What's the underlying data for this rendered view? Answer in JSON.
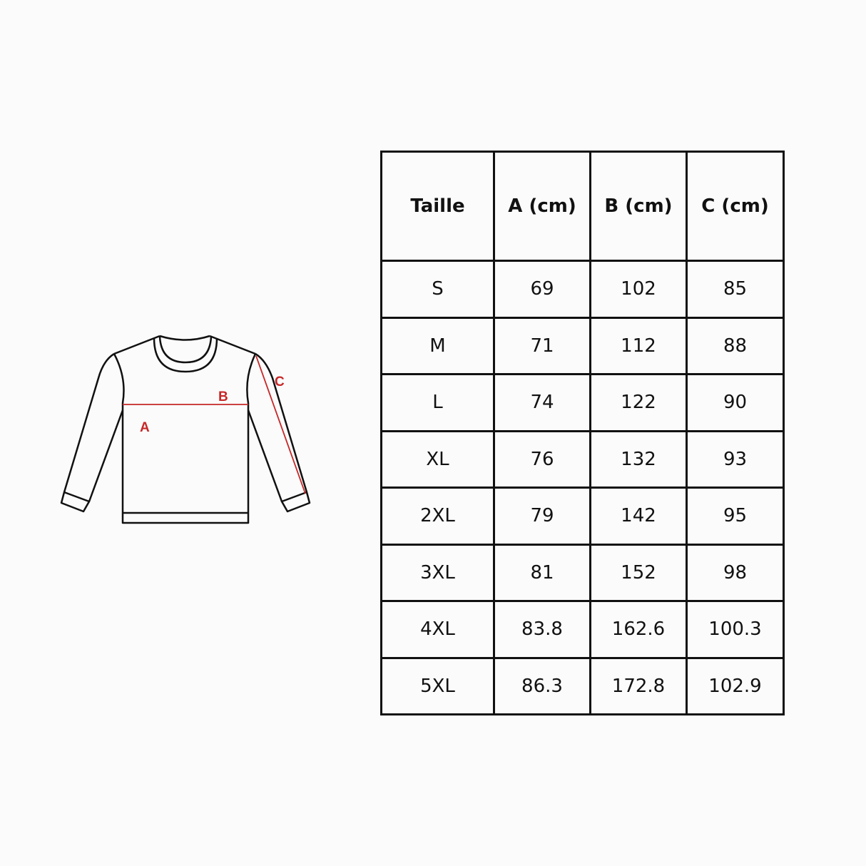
{
  "diagram": {
    "labels": {
      "a": "A",
      "b": "B",
      "c": "C"
    },
    "line_color": "#111111",
    "measure_color": "#c62828"
  },
  "table": {
    "headers": [
      "Taille",
      "A (cm)",
      "B (cm)",
      "C (cm)"
    ],
    "rows": [
      [
        "S",
        "69",
        "102",
        "85"
      ],
      [
        "M",
        "71",
        "112",
        "88"
      ],
      [
        "L",
        "74",
        "122",
        "90"
      ],
      [
        "XL",
        "76",
        "132",
        "93"
      ],
      [
        "2XL",
        "79",
        "142",
        "95"
      ],
      [
        "3XL",
        "81",
        "152",
        "98"
      ],
      [
        "4XL",
        "83.8",
        "162.6",
        "100.3"
      ],
      [
        "5XL",
        "86.3",
        "172.8",
        "102.9"
      ]
    ]
  }
}
